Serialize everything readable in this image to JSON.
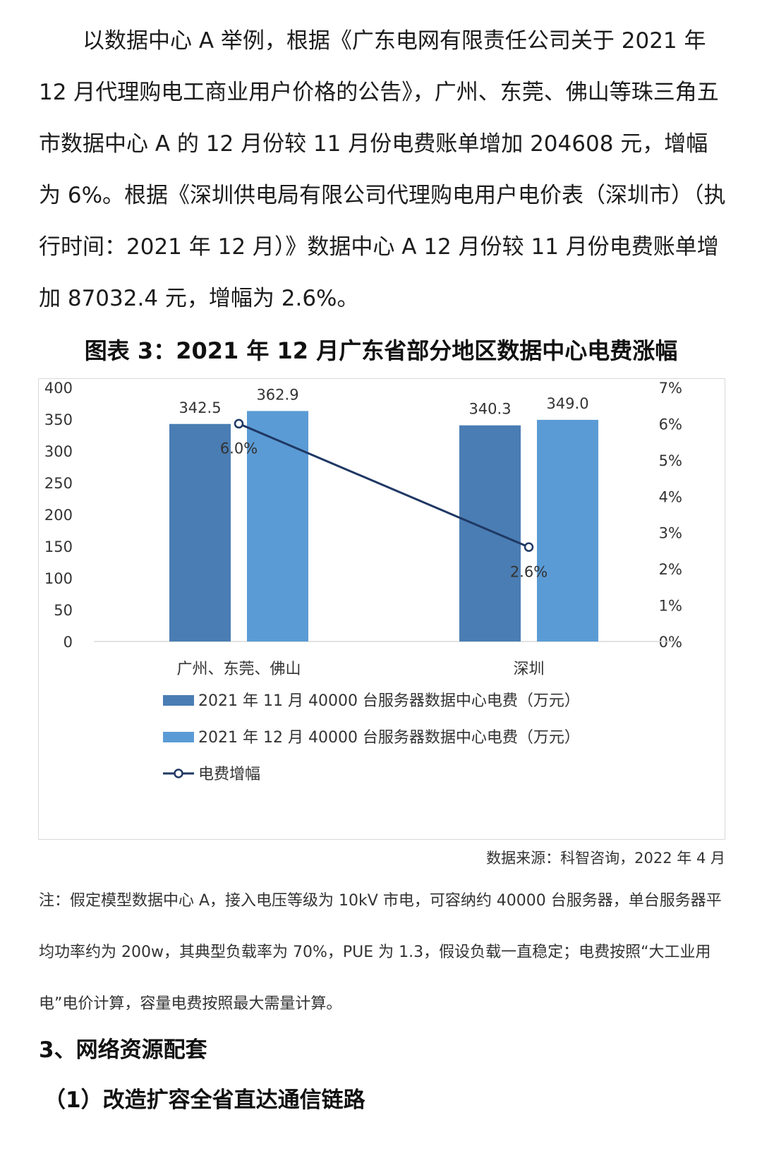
{
  "intro_paragraph": "以数据中心 A 举例，根据《广东电网有限责任公司关于 2021 年 12 月代理购电工商业用户价格的公告》，广州、东莞、佛山等珠三角五市数据中心 A 的 12 月份较 11 月份电费账单增加 204608 元，增幅为 6%。根据《深圳供电局有限公司代理购电用户电价表（深圳市）（执行时间：2021 年 12 月）》数据中心 A 12 月份较 11 月份电费账单增加 87032.4 元，增幅为 2.6%。",
  "chart_heading": "图表 3：2021 年 12 月广东省部分地区数据中心电费涨幅",
  "chart_data": {
    "type": "bar",
    "categories": [
      "广州、东莞、佛山",
      "深圳"
    ],
    "series": [
      {
        "name": "2021 年 11 月 40000 台服务器数据中心电费（万元）",
        "values": [
          342.5,
          340.3
        ],
        "labels": [
          "342.5",
          "340.3"
        ],
        "color": "#4a7db3",
        "axis": "left"
      },
      {
        "name": "2021 年 12 月 40000 台服务器数据中心电费（万元）",
        "values": [
          362.9,
          349.0
        ],
        "labels": [
          "362.9",
          "349.0"
        ],
        "color": "#5b9bd5",
        "axis": "left"
      }
    ],
    "line_series": {
      "name": "电费增幅",
      "type": "line",
      "values": [
        6.0,
        2.6
      ],
      "labels": [
        "6.0%",
        "2.6%"
      ],
      "color": "#1f3864",
      "axis": "right"
    },
    "left_axis": {
      "ylim": [
        0,
        400
      ],
      "ticks": [
        "0",
        "50",
        "100",
        "150",
        "200",
        "250",
        "300",
        "350",
        "400"
      ]
    },
    "right_axis": {
      "ylim": [
        0,
        7
      ],
      "ticks": [
        "0%",
        "1%",
        "2%",
        "3%",
        "4%",
        "5%",
        "6%",
        "7%"
      ]
    },
    "legend_position": "bottom",
    "grid": false
  },
  "source_text": "数据来源：科智咨询，2022 年 4 月",
  "note_text": "注：假定模型数据中心 A，接入电压等级为 10kV 市电，可容纳约 40000 台服务器，单台服务器平均功率约为 200w，其典型负载率为 70%，PUE 为 1.3，假设负载一直稳定；电费按照“大工业用电”电价计算，容量电费按照最大需量计算。",
  "section_heading": "3、网络资源配套",
  "subsection_heading": "（1）改造扩容全省直达通信链路"
}
